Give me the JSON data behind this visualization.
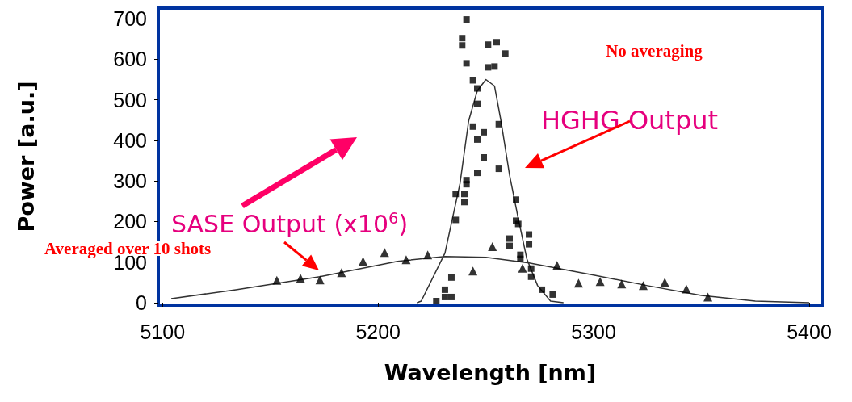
{
  "chart_data": {
    "type": "scatter",
    "xlabel": "Wavelength [nm]",
    "ylabel": "Power [a.u.]",
    "xlim": [
      5098,
      5406
    ],
    "ylim": [
      -6,
      726
    ],
    "xticks": [
      5100,
      5200,
      5300,
      5400
    ],
    "yticks": [
      0,
      100,
      200,
      300,
      400,
      500,
      600,
      700
    ],
    "grid": false,
    "annotations": [
      "No averaging",
      "HGHG Output",
      "SASE Output (x10$^{6}$)",
      "Averaged over 10 shots"
    ],
    "series": [
      {
        "marker": "square",
        "color": "#000000",
        "x": [
          5241,
          5239,
          5239,
          5241,
          5251,
          5255,
          5259,
          5251,
          5254,
          5244,
          5246,
          5246,
          5256,
          5244,
          5249,
          5246,
          5249,
          5256,
          5246,
          5241,
          5241,
          5236,
          5240,
          5240,
          5236,
          5264,
          5264,
          5265,
          5261,
          5261,
          5270,
          5270,
          5266,
          5266,
          5271,
          5271,
          5276,
          5281,
          5234,
          5231,
          5234,
          5231,
          5227
        ],
        "values": [
          698,
          652,
          634,
          590,
          636,
          642,
          614,
          580,
          582,
          548,
          528,
          490,
          440,
          434,
          420,
          402,
          358,
          330,
          320,
          302,
          292,
          268,
          268,
          248,
          204,
          254,
          202,
          194,
          158,
          140,
          168,
          144,
          118,
          108,
          84,
          64,
          32,
          20,
          62,
          32,
          14,
          14,
          4
        ]
      },
      {
        "marker": "triangle",
        "color": "#000000",
        "x": [
          5153,
          5164,
          5173,
          5183,
          5193,
          5203,
          5213,
          5223,
          5244,
          5253,
          5267,
          5283,
          5293,
          5303,
          5313,
          5323,
          5333,
          5343,
          5353
        ],
        "values": [
          55,
          60,
          56,
          74,
          102,
          124,
          106,
          118,
          78,
          138,
          85,
          92,
          48,
          52,
          46,
          42,
          50,
          34,
          14
        ]
      },
      {
        "type": "line",
        "marker": "none",
        "color": "#333333",
        "x": [
          5218,
          5220,
          5231,
          5238,
          5242,
          5246,
          5250,
          5254,
          5257,
          5261,
          5265,
          5269,
          5274,
          5280,
          5286
        ],
        "values": [
          0,
          4,
          122,
          294,
          448,
          522,
          550,
          534,
          448,
          314,
          208,
          108,
          42,
          4,
          0
        ]
      },
      {
        "type": "line",
        "marker": "none",
        "color": "#333333",
        "x": [
          5104,
          5134,
          5173,
          5209,
          5231,
          5250,
          5270,
          5300,
          5325,
          5350,
          5375,
          5400
        ],
        "values": [
          10,
          32,
          64,
          102,
          114,
          112,
          98,
          68,
          42,
          18,
          4,
          0
        ]
      }
    ]
  }
}
